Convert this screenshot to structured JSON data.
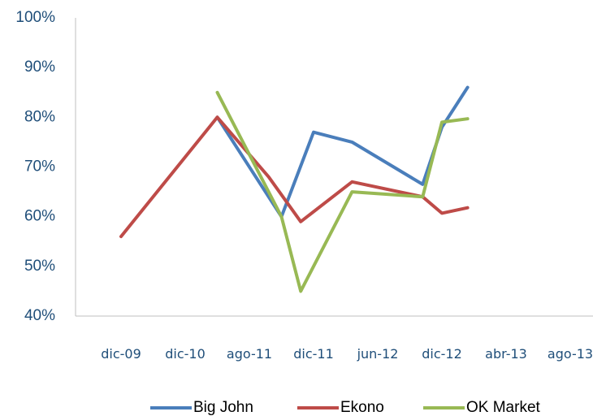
{
  "chart_data": {
    "type": "line",
    "title": "",
    "xlabel": "",
    "ylabel": "",
    "categories": [
      "dic-09",
      "dic-10",
      "ago-11",
      "dic-11",
      "jun-12",
      "dic-12",
      "abr-13",
      "ago-13"
    ],
    "y_ticks": [
      "40%",
      "50%",
      "60%",
      "70%",
      "80%",
      "90%",
      "100%"
    ],
    "ylim": [
      40,
      100
    ],
    "grid": false,
    "legend_position": "bottom",
    "series": [
      {
        "name": "Big John",
        "color": "#4a7ebb",
        "points": [
          [
            1.5,
            80
          ],
          [
            2.5,
            60
          ],
          [
            3.0,
            77
          ],
          [
            3.6,
            75
          ],
          [
            4.7,
            66.5
          ],
          [
            5.0,
            78
          ],
          [
            5.4,
            86
          ]
        ]
      },
      {
        "name": "Ekono",
        "color": "#be4b48",
        "points": [
          [
            0.0,
            56
          ],
          [
            1.5,
            80
          ],
          [
            2.3,
            68
          ],
          [
            2.8,
            59
          ],
          [
            3.6,
            67
          ],
          [
            4.7,
            64
          ],
          [
            5.0,
            60.7
          ],
          [
            5.4,
            61.8
          ]
        ]
      },
      {
        "name": "OK Market",
        "color": "#98b954",
        "points": [
          [
            1.5,
            85
          ],
          [
            2.5,
            60
          ],
          [
            2.8,
            45
          ],
          [
            3.6,
            65
          ],
          [
            4.7,
            64
          ],
          [
            5.0,
            79
          ],
          [
            5.4,
            79.7
          ]
        ]
      }
    ]
  }
}
